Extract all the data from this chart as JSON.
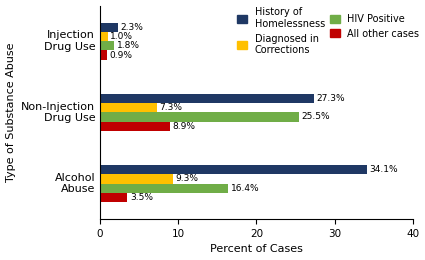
{
  "categories": [
    "Injection\nDrug Use",
    "Non-Injection\nDrug Use",
    "Alcohol\nAbuse"
  ],
  "series": [
    {
      "label": "History of\nHomelessness",
      "color": "#1f3864",
      "values": [
        2.3,
        27.3,
        34.1
      ]
    },
    {
      "label": "Diagnosed in\nCorrections",
      "color": "#ffc000",
      "values": [
        1.0,
        7.3,
        9.3
      ]
    },
    {
      "label": "HIV Positive",
      "color": "#70ad47",
      "values": [
        1.8,
        25.5,
        16.4
      ]
    },
    {
      "label": "All other cases",
      "color": "#c00000",
      "values": [
        0.9,
        8.9,
        3.5
      ]
    }
  ],
  "xlabel": "Percent of Cases",
  "ylabel": "Type of Substance Abuse",
  "xlim": [
    0,
    40
  ],
  "xticks": [
    0,
    10,
    20,
    30,
    40
  ],
  "bar_height": 0.13,
  "background_color": "#ffffff",
  "legend_fontsize": 7.0,
  "axis_label_fontsize": 8,
  "tick_fontsize": 7.5,
  "value_label_fontsize": 6.5
}
